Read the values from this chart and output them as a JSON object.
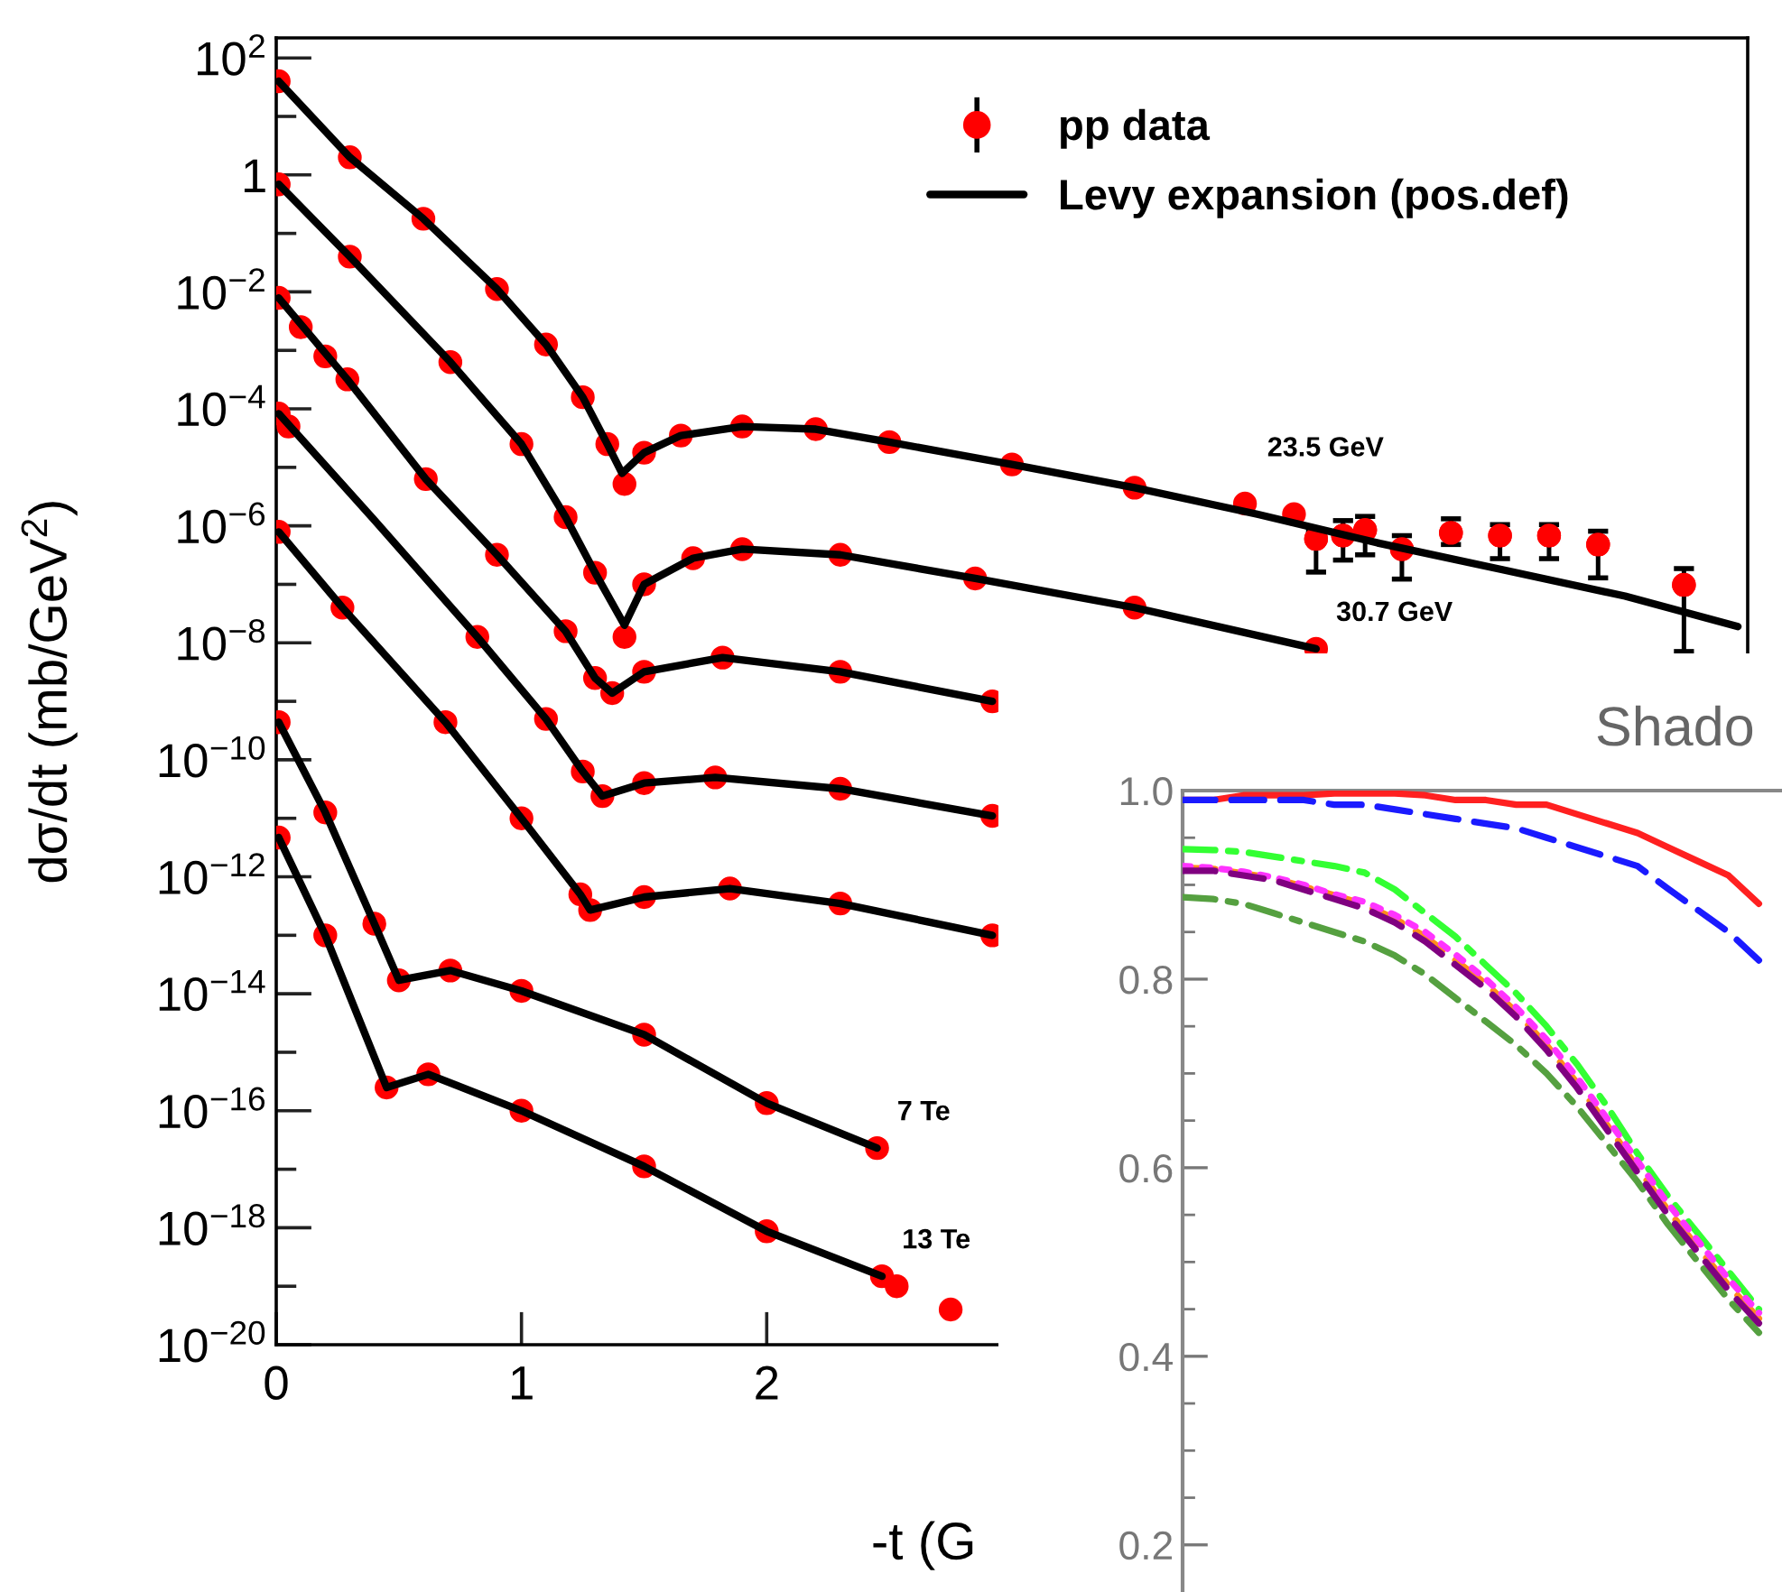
{
  "chart_data": [
    {
      "type": "line",
      "xlabel": "-t (G",
      "ylabel": "dσ/dt (mb/GeV$^{2}$)",
      "log": "y",
      "legend": "top right",
      "xlim": [
        0,
        6
      ],
      "xticks": [
        0,
        1,
        2
      ],
      "ylim": [
        1e-20,
        220
      ],
      "yticks": [
        {
          "value": 100,
          "label": "10$^{2}$"
        },
        {
          "value": 10,
          "label": null
        },
        {
          "value": 1,
          "label": "1"
        },
        {
          "value": 0.1,
          "label": null
        },
        {
          "value": 0.01,
          "label": "10$^{−2}$"
        },
        {
          "value": 0.001,
          "label": null
        },
        {
          "value": 0.0001,
          "label": "10$^{−4}$"
        },
        {
          "value": 1e-05,
          "label": null
        },
        {
          "value": 1e-06,
          "label": "10$^{−6}$"
        },
        {
          "value": 1e-07,
          "label": null
        },
        {
          "value": 1e-08,
          "label": "10$^{−8}$"
        },
        {
          "value": 1e-09,
          "label": null
        },
        {
          "value": 1e-10,
          "label": "10$^{−10}$"
        },
        {
          "value": 1e-11,
          "label": null
        },
        {
          "value": 1e-12,
          "label": "10$^{−12}$"
        },
        {
          "value": 1e-13,
          "label": null
        },
        {
          "value": 1e-14,
          "label": "10$^{−14}$"
        },
        {
          "value": 1e-15,
          "label": null
        },
        {
          "value": 1e-16,
          "label": "10$^{−16}$"
        },
        {
          "value": 1e-17,
          "label": null
        },
        {
          "value": 1e-18,
          "label": "10$^{−18}$"
        },
        {
          "value": 1e-19,
          "label": null
        },
        {
          "value": 1e-20,
          "label": "10$^{−20}$"
        }
      ],
      "annotations": [
        {
          "text": "23.5 GeV",
          "x": 4.0,
          "y": 1.58e-06
        },
        {
          "text": "30.7 GeV",
          "x": 4.24,
          "y": 7.9e-09
        },
        {
          "text": "7 Te",
          "x": 2.45,
          "y": 2.3e-17
        },
        {
          "text": "13 Te",
          "x": 2.47,
          "y": 1.48e-19
        }
      ],
      "series": [
        {
          "type": "scatter",
          "name": "pp data",
          "color": "#ff0000",
          "marker": "circle",
          "x": [
            0.01,
            0.3,
            0.6,
            0.9,
            1.1,
            1.25,
            1.35,
            1.42,
            1.5,
            1.65,
            1.9,
            2.2,
            2.5,
            3.0,
            3.5,
            3.95,
            4.15,
            4.24,
            4.35,
            4.44,
            4.59,
            4.79,
            4.99,
            5.19,
            5.39,
            5.74
          ],
          "values": [
            40,
            2.0,
            0.178,
            0.0112,
            0.00126,
            0.000158,
            2.5e-05,
            5.2e-06,
            1.78e-05,
            3.5e-05,
            5e-05,
            4.5e-05,
            2.7e-05,
            1.12e-05,
            4.5e-06,
            2.4e-06,
            1.58e-06,
            6e-07,
            6.8e-07,
            8.5e-07,
            4e-07,
            7.6e-07,
            6.8e-07,
            6.8e-07,
            4.8e-07,
            9.8e-08
          ],
          "errors": [
            null,
            null,
            null,
            null,
            null,
            null,
            null,
            null,
            null,
            null,
            null,
            null,
            null,
            null,
            null,
            null,
            null,
            [
              1.62e-07,
              8.5e-07
            ],
            [
              2.6e-07,
              1.23e-06
            ],
            [
              3.2e-07,
              1.45e-06
            ],
            [
              1.23e-07,
              6.8e-07
            ],
            [
              4.8e-07,
              1.32e-06
            ],
            [
              2.75e-07,
              1.05e-06
            ],
            [
              2.75e-07,
              1.05e-06
            ],
            [
              1.29e-07,
              8.1e-07
            ],
            [
              7.1e-09,
              1.86e-07
            ]
          ]
        },
        {
          "type": "line",
          "name": "Levy expansion (pos.def)",
          "color": "#000000",
          "line_style": "solid",
          "x": [
            0.01,
            0.3,
            0.6,
            0.9,
            1.1,
            1.25,
            1.35,
            1.41,
            1.5,
            1.65,
            1.9,
            2.2,
            2.5,
            3.0,
            3.5,
            4.0,
            4.5,
            5.0,
            5.5,
            5.96
          ],
          "values": [
            40,
            2.0,
            0.178,
            0.0112,
            0.00126,
            0.000158,
            2.5e-05,
            7.9e-06,
            1.78e-05,
            3.5e-05,
            5e-05,
            4.5e-05,
            2.7e-05,
            1.12e-05,
            4.5e-06,
            1.58e-06,
            5e-07,
            1.78e-07,
            6.3e-08,
            1.9e-08
          ]
        },
        {
          "type": "scatter",
          "color": "#ff0000",
          "marker": "circle",
          "x": [
            0.01,
            0.3,
            0.71,
            1.0,
            1.18,
            1.3,
            1.42,
            1.5,
            1.7,
            1.9,
            2.3,
            2.85,
            3.5,
            4.24
          ],
          "values": [
            0.69,
            0.04,
            0.00063,
            2.5e-05,
            1.41e-06,
            1.58e-07,
            1.26e-08,
            1e-07,
            2.8e-07,
            4e-07,
            3.2e-07,
            1.26e-07,
            4e-08,
            7.9e-09
          ]
        },
        {
          "type": "line",
          "color": "#000000",
          "line_style": "solid",
          "x": [
            0.01,
            0.3,
            0.71,
            1.0,
            1.18,
            1.3,
            1.42,
            1.5,
            1.7,
            1.9,
            2.3,
            2.85,
            3.5,
            4.24
          ],
          "values": [
            0.69,
            0.04,
            0.00063,
            2.5e-05,
            1.41e-06,
            1.58e-07,
            2e-08,
            1e-07,
            2.8e-07,
            4e-07,
            3.2e-07,
            1.26e-07,
            4e-08,
            7.9e-09
          ]
        },
        {
          "type": "scatter",
          "color": "#ff0000",
          "marker": "circle",
          "x": [
            0.01,
            0.1,
            0.2,
            0.29,
            0.61,
            0.9,
            1.18,
            1.3,
            1.37,
            1.5,
            1.82,
            2.3,
            2.92
          ],
          "values": [
            0.0079,
            0.0025,
            0.00079,
            0.00032,
            6.3e-06,
            3.2e-07,
            1.58e-08,
            2.5e-09,
            1.38e-09,
            3.2e-09,
            5.6e-09,
            3.2e-09,
            1e-09
          ]
        },
        {
          "type": "line",
          "color": "#000000",
          "line_style": "solid",
          "x": [
            0.01,
            0.29,
            0.61,
            0.9,
            1.18,
            1.3,
            1.37,
            1.5,
            1.82,
            2.3,
            2.92
          ],
          "values": [
            0.0079,
            0.00032,
            6.3e-06,
            3.2e-07,
            1.58e-08,
            2.5e-09,
            1.38e-09,
            3.2e-09,
            5.6e-09,
            3.2e-09,
            1e-09
          ]
        },
        {
          "type": "scatter",
          "color": "#ff0000",
          "marker": "circle",
          "x": [
            0.01,
            0.05,
            0.82,
            1.1,
            1.25,
            1.33,
            1.5,
            1.79,
            2.3,
            2.92
          ],
          "values": [
            8.3e-05,
            5e-05,
            1.26e-08,
            5e-10,
            6.3e-11,
            2.4e-11,
            4e-11,
            5e-11,
            3.2e-11,
            1.1e-11
          ]
        },
        {
          "type": "line",
          "color": "#000000",
          "line_style": "solid",
          "x": [
            0.01,
            0.4,
            0.82,
            1.1,
            1.25,
            1.33,
            1.5,
            1.79,
            2.3,
            2.92
          ],
          "values": [
            8.3e-05,
            1.26e-06,
            1.26e-08,
            5e-10,
            6.3e-11,
            2.4e-11,
            4e-11,
            5e-11,
            3.2e-11,
            1.1e-11
          ]
        },
        {
          "type": "scatter",
          "color": "#ff0000",
          "marker": "circle",
          "x": [
            0.01,
            0.27,
            0.69,
            1.0,
            1.24,
            1.28,
            1.5,
            1.85,
            2.3,
            2.92
          ],
          "values": [
            7.9e-07,
            4e-08,
            4.4e-10,
            1e-11,
            5e-13,
            2.7e-13,
            4.5e-13,
            6.3e-13,
            3.5e-13,
            1e-13
          ]
        },
        {
          "type": "line",
          "color": "#000000",
          "line_style": "solid",
          "x": [
            0.01,
            0.27,
            0.69,
            1.0,
            1.24,
            1.28,
            1.5,
            1.85,
            2.3,
            2.92
          ],
          "values": [
            7.9e-07,
            4e-08,
            4.4e-10,
            1e-11,
            5e-13,
            2.7e-13,
            4.5e-13,
            6.3e-13,
            3.5e-13,
            1e-13
          ]
        },
        {
          "type": "scatter",
          "color": "#ff0000",
          "marker": "circle",
          "x": [
            0.01,
            0.2,
            0.4,
            0.5,
            0.71,
            1.0,
            1.5,
            2.0,
            2.45
          ],
          "values": [
            4.4e-10,
            1.26e-11,
            1.58e-13,
            1.7e-14,
            2.5e-14,
            1.12e-14,
            2e-15,
            1.35e-16,
            2.3e-17
          ]
        },
        {
          "type": "line",
          "color": "#000000",
          "line_style": "solid",
          "x": [
            0.01,
            0.2,
            0.4,
            0.5,
            0.71,
            1.0,
            1.5,
            2.0,
            2.45
          ],
          "values": [
            4.4e-10,
            1.26e-11,
            1.58e-13,
            1.7e-14,
            2.5e-14,
            1.12e-14,
            2e-15,
            1.35e-16,
            2.3e-17
          ]
        },
        {
          "type": "scatter",
          "color": "#ff0000",
          "marker": "circle",
          "x": [
            0.01,
            0.2,
            0.45,
            0.62,
            1.0,
            1.5,
            2.0,
            2.47,
            2.53,
            2.75
          ],
          "values": [
            4.7e-12,
            1e-13,
            2.5e-16,
            4.2e-16,
            1e-16,
            1.12e-17,
            8.7e-19,
            1.48e-19,
            1e-19,
            4e-20
          ]
        },
        {
          "type": "line",
          "color": "#000000",
          "line_style": "solid",
          "x": [
            0.01,
            0.2,
            0.45,
            0.62,
            1.0,
            1.5,
            2.0,
            2.47
          ],
          "values": [
            4.7e-12,
            1e-13,
            2.5e-16,
            4.2e-16,
            1e-16,
            1.12e-17,
            8.7e-19,
            1.48e-19
          ]
        }
      ]
    },
    {
      "type": "line",
      "title": "Shado",
      "tick_labels": "y",
      "categories": [
        null,
        null,
        null,
        null,
        null,
        null,
        null,
        null,
        null,
        null,
        null,
        null,
        null,
        null,
        null,
        null,
        null,
        null,
        null,
        null,
        null
      ],
      "ylim": [
        0.15,
        1.0
      ],
      "yticks": [
        0.2,
        {
          "value": 0.25,
          "label": null
        },
        {
          "value": 0.3,
          "label": null
        },
        {
          "value": 0.35,
          "label": null
        },
        0.4,
        {
          "value": 0.45,
          "label": null
        },
        {
          "value": 0.5,
          "label": null
        },
        {
          "value": 0.55,
          "label": null
        },
        0.6,
        {
          "value": 0.65,
          "label": null
        },
        {
          "value": 0.7,
          "label": null
        },
        {
          "value": 0.75,
          "label": null
        },
        0.8,
        {
          "value": 0.85,
          "label": null
        },
        {
          "value": 0.9,
          "label": null
        },
        {
          "value": 0.95,
          "label": null
        },
        {
          "value": 1.0,
          "label": "1.0"
        }
      ],
      "series": [
        {
          "color": "#ff2020",
          "line_style": "solid",
          "values": [
            0.99,
            0.99,
            0.995,
            0.995,
            0.995,
            0.997,
            0.997,
            0.997,
            0.995,
            0.99,
            0.99,
            0.985,
            0.985,
            0.975,
            0.965,
            0.955,
            0.94,
            0.925,
            0.91,
            0.88,
            null
          ]
        },
        {
          "color": "#1a1aff",
          "line_style": "dashed",
          "values": [
            0.99,
            0.99,
            0.99,
            0.99,
            0.99,
            0.985,
            0.985,
            0.98,
            0.975,
            0.97,
            0.965,
            0.96,
            0.95,
            0.94,
            0.93,
            0.92,
            0.896,
            0.873,
            0.85,
            0.82,
            null
          ]
        },
        {
          "color": "#33ff33",
          "line_style": "dashdot",
          "values": [
            0.938,
            0.937,
            0.935,
            0.93,
            0.925,
            0.92,
            0.913,
            0.895,
            0.87,
            0.845,
            0.815,
            0.785,
            0.75,
            0.71,
            0.665,
            0.615,
            0.57,
            0.53,
            0.49,
            0.45,
            null
          ]
        },
        {
          "color": "#ff8c1a",
          "line_style": "dashed",
          "values": [
            0.918,
            0.917,
            0.912,
            0.907,
            0.898,
            0.889,
            0.879,
            0.864,
            0.845,
            0.82,
            0.795,
            0.765,
            0.73,
            0.69,
            0.645,
            0.6,
            0.555,
            0.515,
            0.475,
            0.44,
            null
          ]
        },
        {
          "color": "#ff33ff",
          "line_style": "dotted",
          "values": [
            0.92,
            0.918,
            0.914,
            0.908,
            0.9,
            0.89,
            0.882,
            0.868,
            0.85,
            0.826,
            0.8,
            0.77,
            0.736,
            0.696,
            0.652,
            0.607,
            0.562,
            0.522,
            0.482,
            0.446,
            null
          ]
        },
        {
          "color": "#55a040",
          "line_style": "dashdot",
          "values": [
            0.887,
            0.885,
            0.88,
            0.87,
            0.86,
            0.85,
            0.84,
            0.825,
            0.805,
            0.78,
            0.755,
            0.73,
            0.7,
            0.665,
            0.625,
            0.585,
            0.54,
            0.5,
            0.46,
            0.425,
            null
          ]
        },
        {
          "color": "#800080",
          "line_style": "dashed",
          "values": [
            0.915,
            0.915,
            0.91,
            0.905,
            0.895,
            0.885,
            0.875,
            0.86,
            0.84,
            0.815,
            0.79,
            0.76,
            0.725,
            0.685,
            0.64,
            0.595,
            0.55,
            0.51,
            0.47,
            0.435,
            null
          ]
        }
      ]
    }
  ]
}
